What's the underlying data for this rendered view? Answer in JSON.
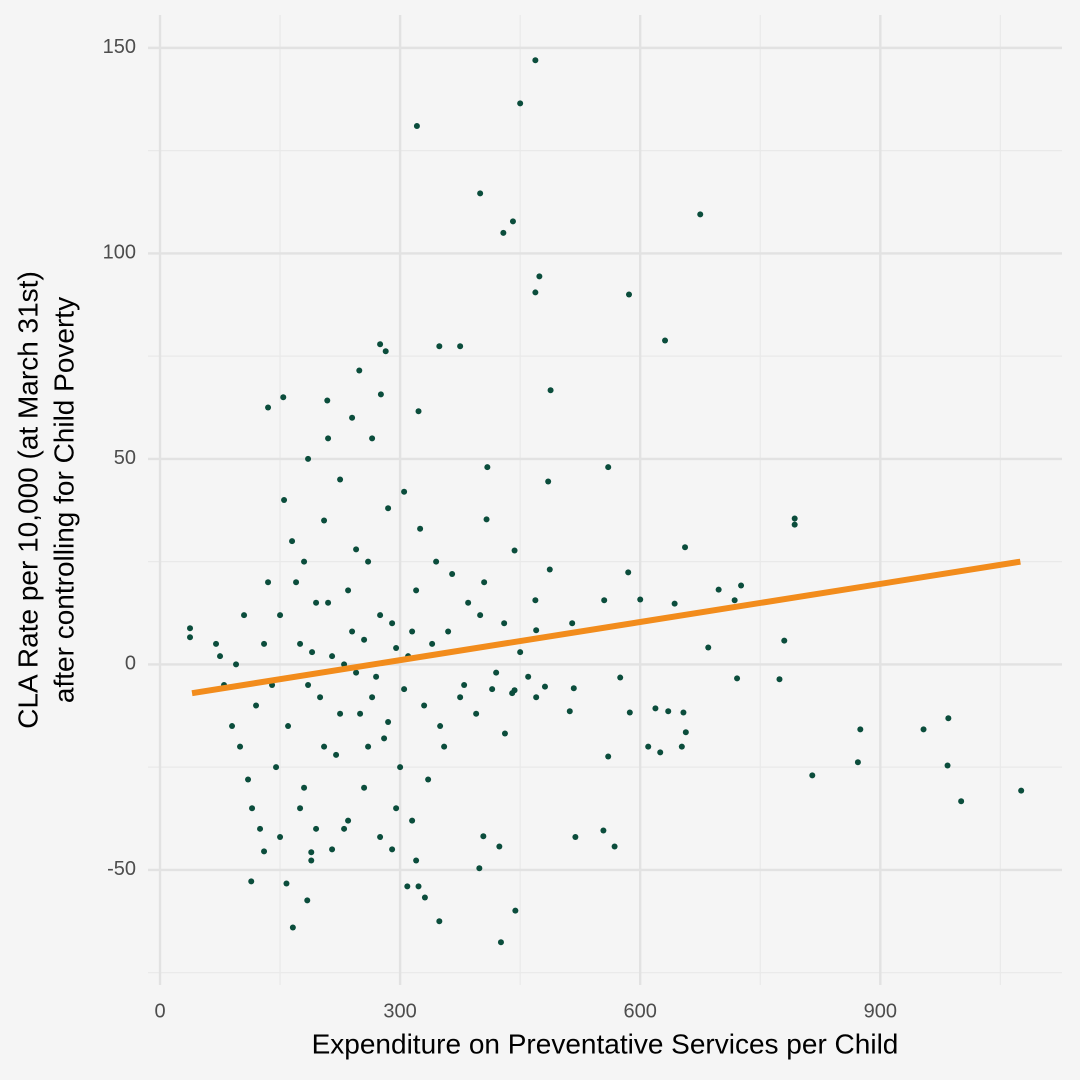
{
  "chart_data": {
    "type": "scatter",
    "xlabel": "Expenditure on Preventative Services per Child",
    "ylabel": [
      "CLA Rate per 10,000 (at March 31st)",
      "after controlling for Child Poverty"
    ],
    "xlim": [
      -15,
      1127
    ],
    "ylim": [
      -78,
      158
    ],
    "xticks": [
      0,
      300,
      600,
      900
    ],
    "yticks": [
      -50,
      0,
      50,
      100,
      150
    ],
    "x_minor_grid": [
      150,
      450,
      750,
      1050
    ],
    "y_minor_grid": [
      -75,
      -25,
      25,
      75,
      125
    ],
    "grid": true,
    "series": [
      {
        "color": "#0b4d3c",
        "x": [
          469,
          450,
          321,
          400,
          441,
          429,
          675,
          474,
          469,
          586,
          631,
          275,
          282,
          349,
          375,
          249,
          488,
          154,
          135,
          209,
          276,
          323,
          560,
          409,
          485,
          793,
          793,
          656,
          726,
          698,
          585,
          487,
          600,
          643,
          718,
          780,
          685,
          555,
          37.5,
          37.5,
          721,
          774,
          575,
          517,
          481,
          512,
          587,
          619,
          635,
          654,
          657,
          652,
          625,
          610,
          875,
          954,
          985,
          815,
          872,
          984,
          1001,
          1076,
          560,
          519,
          554,
          568,
          404,
          424,
          399,
          444,
          426,
          349,
          166,
          184,
          114,
          158,
          309,
          323,
          331,
          320,
          189,
          189,
          130,
          431,
          443,
          469,
          470,
          515,
          408,
          443,
          100,
          110,
          120,
          130,
          140,
          150,
          160,
          170,
          180,
          190,
          200,
          210,
          220,
          230,
          240,
          250,
          260,
          270,
          280,
          290,
          300,
          310,
          320,
          330,
          340,
          350,
          360,
          380,
          400,
          420,
          95,
          105,
          115,
          125,
          135,
          145,
          155,
          165,
          175,
          185,
          195,
          205,
          215,
          225,
          235,
          245,
          255,
          265,
          275,
          285,
          295,
          305,
          315,
          325,
          335,
          345,
          355,
          365,
          375,
          385,
          395,
          405,
          415,
          430,
          440,
          175,
          185,
          195,
          205,
          215,
          225,
          235,
          245,
          255,
          265,
          275,
          285,
          295,
          305,
          315,
          75,
          80,
          90,
          70,
          450,
          460,
          470,
          210,
          240,
          290,
          230,
          260,
          180,
          150
        ],
        "y": [
          147,
          136.5,
          131,
          114.6,
          107.8,
          105,
          109.5,
          94.4,
          90.5,
          90,
          78.8,
          77.9,
          76.2,
          77.4,
          77.4,
          71.5,
          66.7,
          65,
          62.5,
          64.2,
          65.7,
          61.6,
          48,
          48,
          44.5,
          35.5,
          34,
          28.5,
          19.2,
          18.2,
          22.4,
          23.1,
          15.8,
          14.8,
          15.6,
          5.8,
          4.1,
          15.6,
          8.8,
          6.6,
          -3.4,
          -3.6,
          -3.2,
          -5.8,
          -5.4,
          -11.4,
          -11.7,
          -10.7,
          -11.4,
          -11.7,
          -16.5,
          -20,
          -21.4,
          -20,
          -15.8,
          -15.8,
          -13.1,
          -27,
          -23.8,
          -24.6,
          -33.3,
          -30.7,
          -22.4,
          -42,
          -40.4,
          -44.3,
          -41.8,
          -44.3,
          -49.6,
          -59.9,
          -67.6,
          -62.5,
          -64,
          -57.4,
          -52.8,
          -53.3,
          -54,
          -54,
          -56.7,
          -47.7,
          -47.7,
          -45.7,
          -45.5,
          -16.8,
          -6.3,
          15.6,
          8.3,
          10,
          35.3,
          27.7,
          -20,
          -28,
          -10,
          5,
          -5,
          12,
          -15,
          20,
          -30,
          3,
          -8,
          15,
          -22,
          0,
          8,
          -12,
          25,
          -3,
          -18,
          10,
          -25,
          2,
          18,
          -10,
          5,
          -15,
          8,
          -5,
          12,
          -2,
          0,
          12,
          -35,
          -40,
          20,
          -25,
          40,
          30,
          -35,
          50,
          -40,
          35,
          -45,
          45,
          -38,
          28,
          -30,
          55,
          -42,
          38,
          -35,
          42,
          -38,
          33,
          -28,
          25,
          -20,
          22,
          -8,
          15,
          -12,
          20,
          -6,
          10,
          -7,
          5,
          -5,
          15,
          -20,
          2,
          -12,
          18,
          -2,
          6,
          -8,
          12,
          -14,
          4,
          -6,
          8,
          2,
          -5,
          -15,
          5,
          3,
          -3,
          -8,
          55,
          60,
          -45,
          -40,
          -20,
          25,
          -42
        ]
      }
    ],
    "fit": {
      "color": "#f28c1c",
      "x": [
        40,
        1075
      ],
      "y": [
        -7,
        25
      ]
    }
  }
}
